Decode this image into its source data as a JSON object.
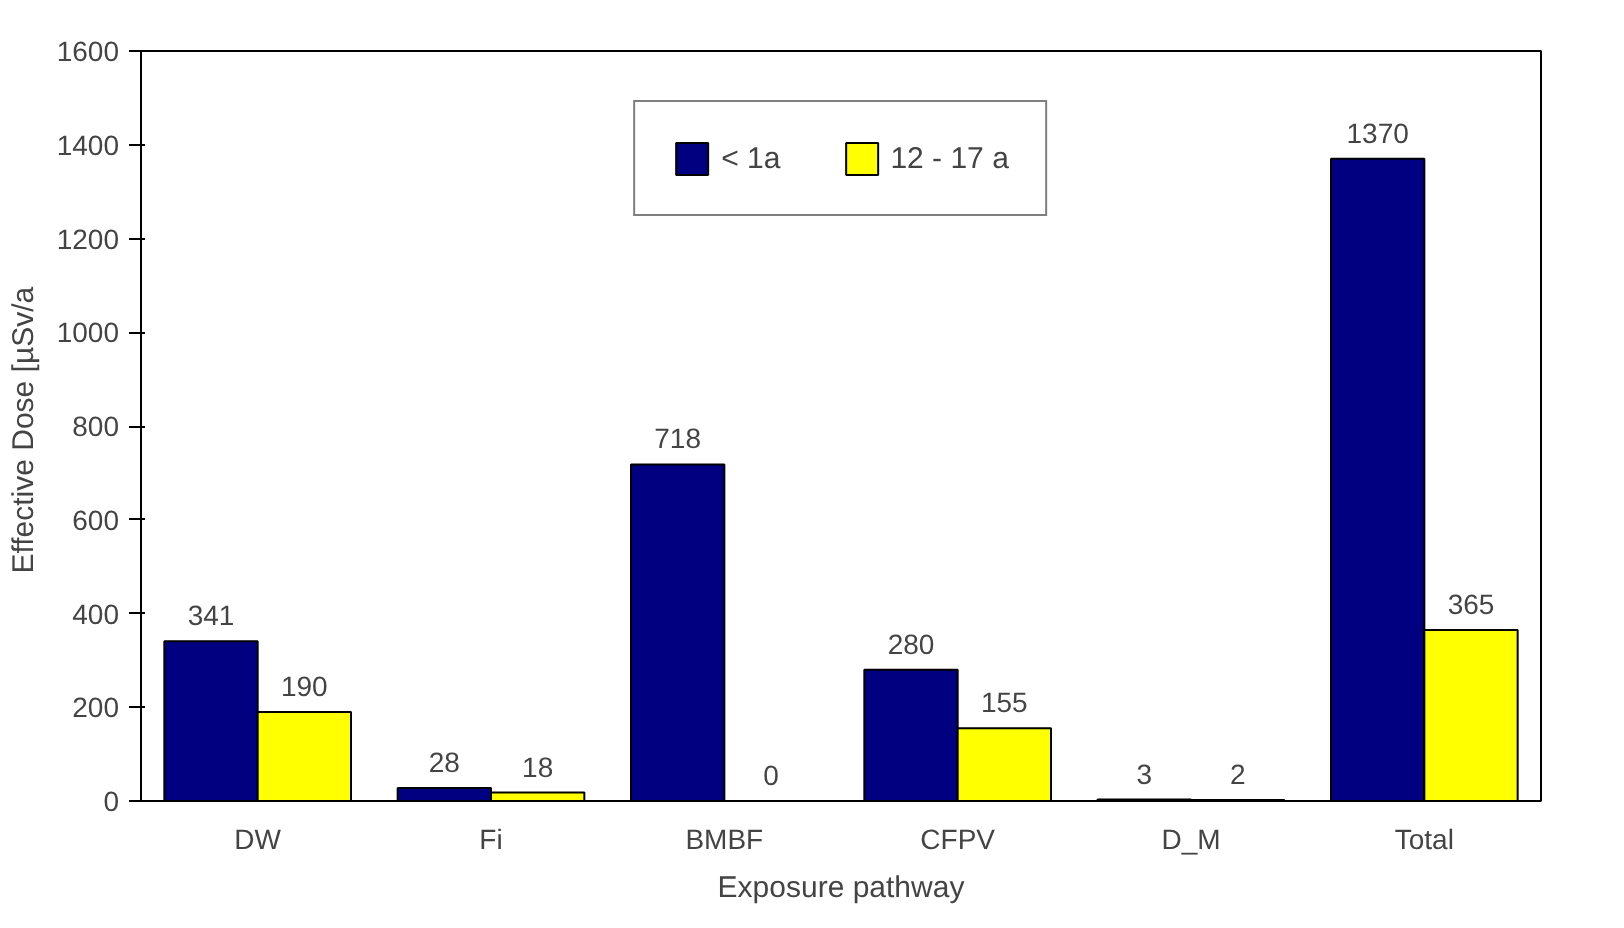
{
  "chart_data": {
    "type": "bar",
    "xlabel": "Exposure pathway",
    "ylabel": "Effective Dose  [µSv/a",
    "categories": [
      "DW",
      "Fi",
      "BMBF",
      "CFPV",
      "D_M",
      "Total"
    ],
    "series": [
      {
        "name": "< 1a",
        "color": "#000080",
        "values": [
          341,
          28,
          718,
          280,
          3,
          1370
        ]
      },
      {
        "name": "12 - 17 a",
        "color": "#ffff00",
        "values": [
          190,
          18,
          0,
          155,
          2,
          365
        ]
      }
    ],
    "ylim": [
      0,
      1600
    ],
    "yticks": [
      0,
      200,
      400,
      600,
      800,
      1000,
      1200,
      1400,
      1600
    ],
    "data_labels": true,
    "legend": "top",
    "grid": false
  }
}
